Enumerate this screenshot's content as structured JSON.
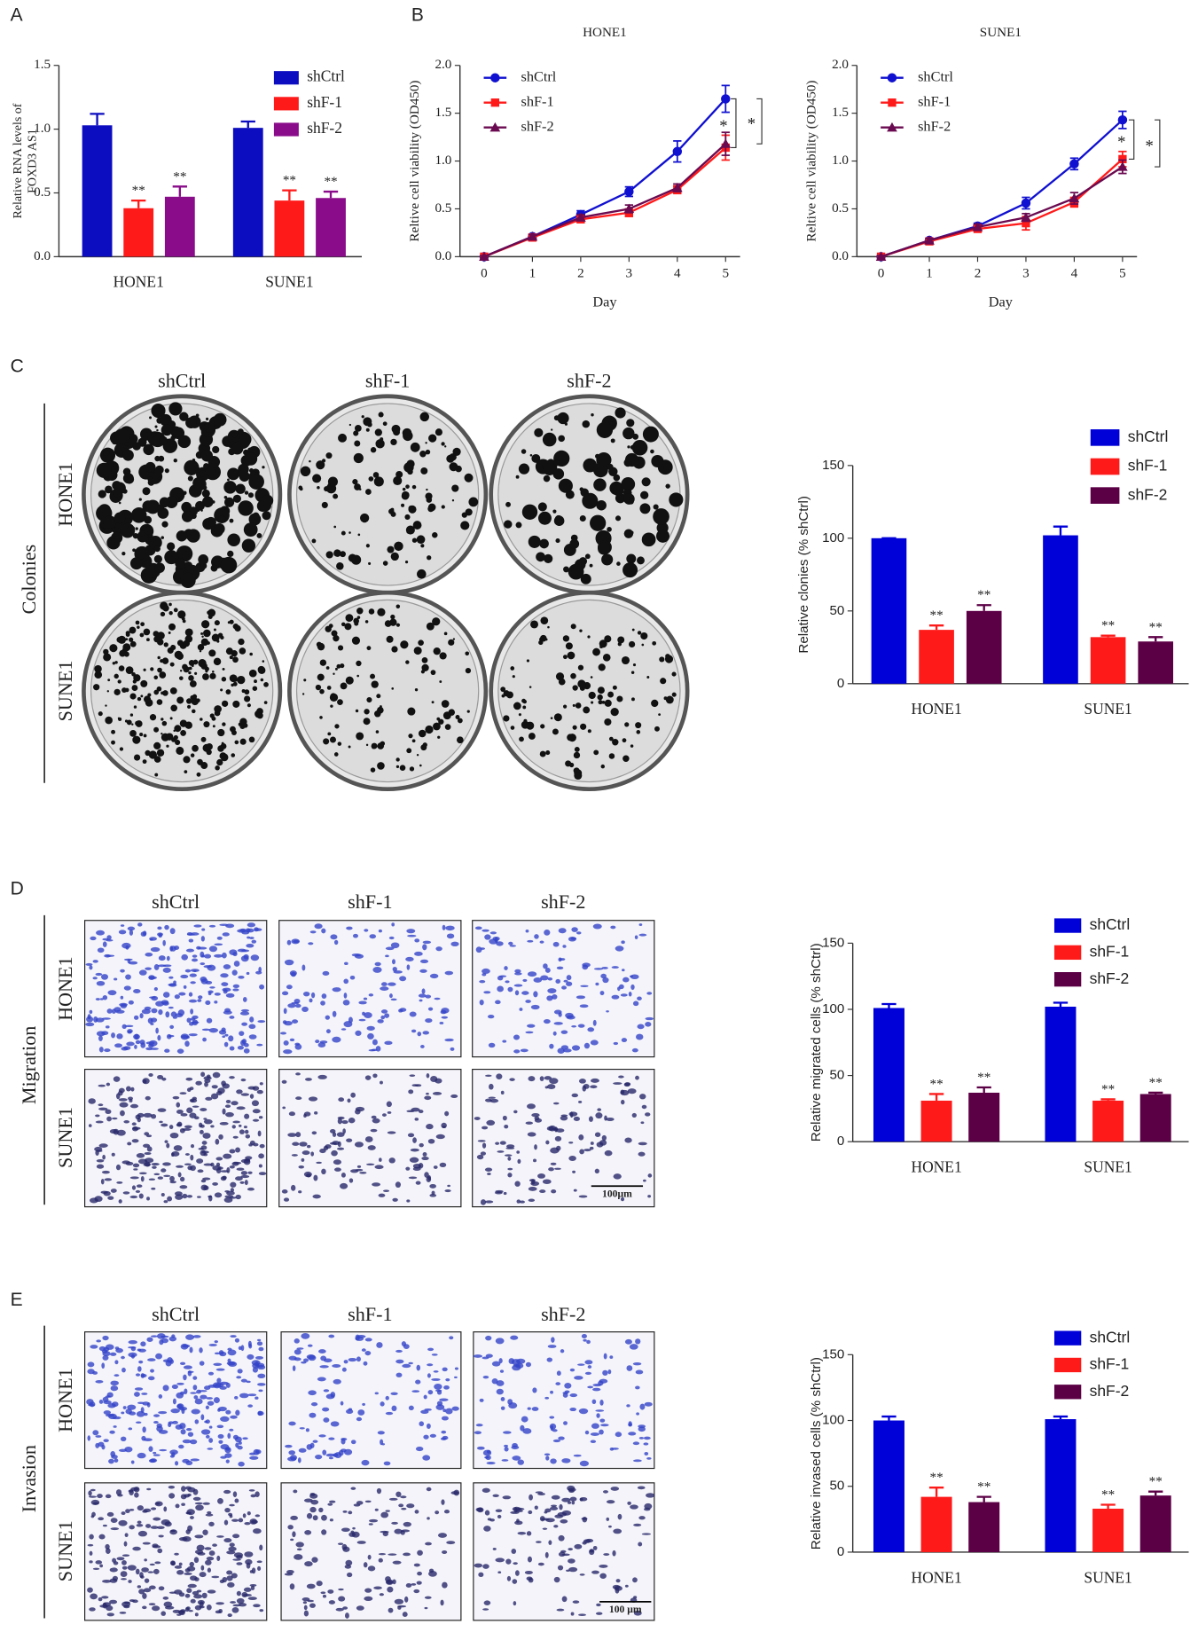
{
  "figure": {
    "panels": [
      "A",
      "B",
      "C",
      "D",
      "E"
    ],
    "image_panels": [
      {
        "columns": [
          "shCtrl",
          "shF-1",
          "shF-2"
        ],
        "rows": [
          "HONE1",
          "SUNE1"
        ],
        "side_label": "Colonies"
      },
      {
        "columns": [
          "shCtrl",
          "shF-1",
          "shF-2"
        ],
        "rows": [
          "HONE1",
          "SUNE1"
        ],
        "side_label": "Migration",
        "scale_bar": "100μm"
      },
      {
        "columns": [
          "shCtrl",
          "shF-1",
          "shF-2"
        ],
        "rows": [
          "HONE1",
          "SUNE1"
        ],
        "side_label": "Invasion",
        "scale_bar": "100 μm"
      }
    ]
  },
  "chart_data": [
    {
      "type": "bar",
      "ylabel": [
        "Relative RNA levels of",
        "FOXD3 AS1"
      ],
      "categories": [
        "HONE1",
        "SUNE1"
      ],
      "ylim": [
        0,
        1.5
      ],
      "yticks": [
        {
          "value": 0,
          "label": "0.0"
        },
        0.5,
        {
          "value": 1,
          "label": "1.0"
        },
        1.5
      ],
      "series": [
        {
          "name": "shCtrl",
          "color": "#0c0cc0",
          "values": [
            1.03,
            1.01
          ],
          "errors": [
            0.09,
            0.05
          ]
        },
        {
          "name": "shF-1",
          "color": "#ff1a1a",
          "values": [
            0.38,
            0.44
          ],
          "errors": [
            0.06,
            0.08
          ],
          "annotations": [
            "**",
            "**"
          ]
        },
        {
          "name": "shF-2",
          "color": "#8a0c8a",
          "values": [
            0.47,
            0.46
          ],
          "errors": [
            0.08,
            0.05
          ],
          "annotations": [
            "**",
            "**"
          ]
        }
      ]
    },
    {
      "type": "line",
      "title": "HONE1",
      "xlabel": "Day",
      "ylabel": "Reltive cell viability (OD450)",
      "x": [
        0,
        1,
        2,
        3,
        4,
        5
      ],
      "xlim": [
        -0.5,
        5.3
      ],
      "xticks": [
        0,
        1,
        2,
        3,
        4,
        5
      ],
      "ylim": [
        0,
        2
      ],
      "yticks": [
        {
          "value": 0,
          "label": "0.0"
        },
        0.5,
        {
          "value": 1,
          "label": "1.0"
        },
        1.5,
        {
          "value": 2,
          "label": "2.0"
        }
      ],
      "series": [
        {
          "name": "shCtrl",
          "color": "#1010d0",
          "marker": "circle",
          "values": [
            0,
            0.21,
            0.44,
            0.68,
            1.1,
            1.65
          ],
          "errors": [
            0.01,
            0.02,
            0.04,
            0.05,
            0.11,
            0.14
          ]
        },
        {
          "name": "shF-1",
          "color": "#ff1a1a",
          "marker": "square",
          "values": [
            0,
            0.2,
            0.39,
            0.46,
            0.7,
            1.14
          ],
          "errors": [
            0.01,
            0.02,
            0.03,
            0.04,
            0.04,
            0.13
          ]
        },
        {
          "name": "shF-2",
          "color": "#6a0a50",
          "marker": "triangle",
          "values": [
            0,
            0.21,
            0.41,
            0.5,
            0.72,
            1.18
          ],
          "errors": [
            0.01,
            0.02,
            0.03,
            0.04,
            0.04,
            0.12
          ]
        }
      ],
      "brackets": [
        {
          "series": 1,
          "label": "*"
        },
        {
          "series": 2,
          "label": "*"
        }
      ]
    },
    {
      "type": "line",
      "title": "SUNE1",
      "xlabel": "Day",
      "ylabel": "Reltive cell viability (OD450)",
      "x": [
        0,
        1,
        2,
        3,
        4,
        5
      ],
      "xlim": [
        -0.5,
        5.3
      ],
      "xticks": [
        0,
        1,
        2,
        3,
        4,
        5
      ],
      "ylim": [
        0,
        2
      ],
      "yticks": [
        {
          "value": 0,
          "label": "0.0"
        },
        0.5,
        {
          "value": 1,
          "label": "1.0"
        },
        1.5,
        {
          "value": 2,
          "label": "2.0"
        }
      ],
      "series": [
        {
          "name": "shCtrl",
          "color": "#1010d0",
          "marker": "circle",
          "values": [
            0,
            0.17,
            0.32,
            0.56,
            0.97,
            1.43
          ],
          "errors": [
            0.01,
            0.02,
            0.03,
            0.06,
            0.06,
            0.09
          ]
        },
        {
          "name": "shF-1",
          "color": "#ff1a1a",
          "marker": "square",
          "values": [
            0,
            0.16,
            0.29,
            0.35,
            0.57,
            1.02
          ],
          "errors": [
            0.01,
            0.02,
            0.03,
            0.07,
            0.05,
            0.08
          ]
        },
        {
          "name": "shF-2",
          "color": "#6a0a50",
          "marker": "triangle",
          "values": [
            0,
            0.17,
            0.31,
            0.41,
            0.61,
            0.94
          ],
          "errors": [
            0.01,
            0.02,
            0.03,
            0.04,
            0.06,
            0.07
          ]
        }
      ],
      "brackets": [
        {
          "series": 1,
          "label": "*"
        },
        {
          "series": 2,
          "label": "*"
        }
      ]
    },
    {
      "type": "bar",
      "ylabel": "Relative clonies (% shCtrl)",
      "categories": [
        "HONE1",
        "SUNE1"
      ],
      "ylim": [
        0,
        150
      ],
      "yticks": [
        0,
        50,
        100,
        150
      ],
      "series": [
        {
          "name": "shCtrl",
          "color": "#0000d8",
          "values": [
            100,
            102
          ],
          "errors": [
            0,
            6
          ]
        },
        {
          "name": "shF-1",
          "color": "#ff1a1a",
          "values": [
            37,
            32
          ],
          "errors": [
            3,
            1
          ],
          "annotations": [
            "**",
            "**"
          ]
        },
        {
          "name": "shF-2",
          "color": "#5c0046",
          "values": [
            50,
            29
          ],
          "errors": [
            4,
            3
          ],
          "annotations": [
            "**",
            "**"
          ]
        }
      ]
    },
    {
      "type": "bar",
      "ylabel": "Relative migrated cells (% shCtrl)",
      "categories": [
        "HONE1",
        "SUNE1"
      ],
      "ylim": [
        0,
        150
      ],
      "yticks": [
        0,
        50,
        100,
        150
      ],
      "series": [
        {
          "name": "shCtrl",
          "color": "#0000d8",
          "values": [
            101,
            102
          ],
          "errors": [
            3,
            3
          ]
        },
        {
          "name": "shF-1",
          "color": "#ff1a1a",
          "values": [
            31,
            31
          ],
          "errors": [
            5,
            1
          ],
          "annotations": [
            "**",
            "**"
          ]
        },
        {
          "name": "shF-2",
          "color": "#5c0046",
          "values": [
            37,
            36
          ],
          "errors": [
            4,
            1
          ],
          "annotations": [
            "**",
            "**"
          ]
        }
      ]
    },
    {
      "type": "bar",
      "ylabel": "Relative invased cells (% shCtrl)",
      "categories": [
        "HONE1",
        "SUNE1"
      ],
      "ylim": [
        0,
        150
      ],
      "yticks": [
        0,
        50,
        100,
        150
      ],
      "series": [
        {
          "name": "shCtrl",
          "color": "#0000d8",
          "values": [
            100,
            101
          ],
          "errors": [
            3,
            2
          ]
        },
        {
          "name": "shF-1",
          "color": "#ff1a1a",
          "values": [
            42,
            33
          ],
          "errors": [
            7,
            3
          ],
          "annotations": [
            "**",
            "**"
          ]
        },
        {
          "name": "shF-2",
          "color": "#5c0046",
          "values": [
            38,
            43
          ],
          "errors": [
            4,
            3
          ],
          "annotations": [
            "**",
            "**"
          ]
        }
      ]
    }
  ]
}
